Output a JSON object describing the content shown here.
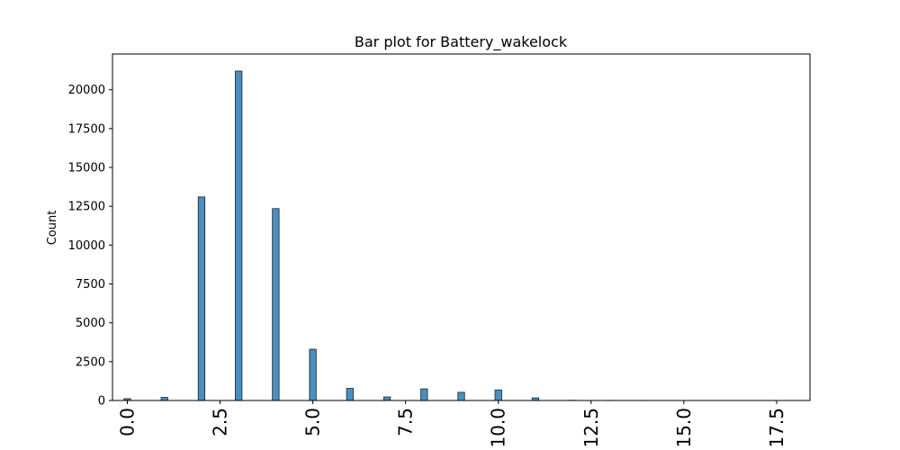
{
  "chart_data": {
    "type": "bar",
    "title": "Bar plot for Battery_wakelock",
    "xlabel": "",
    "ylabel": "Count",
    "xlim": [
      -0.4,
      18.4
    ],
    "ylim": [
      0,
      22300
    ],
    "x_ticks": [
      0.0,
      2.5,
      5.0,
      7.5,
      10.0,
      12.5,
      15.0,
      17.5
    ],
    "x_tick_labels": [
      "0.0",
      "2.5",
      "5.0",
      "7.5",
      "10.0",
      "12.5",
      "15.0",
      "17.5"
    ],
    "y_ticks": [
      0,
      2500,
      5000,
      7500,
      10000,
      12500,
      15000,
      17500,
      20000
    ],
    "y_tick_labels": [
      "0",
      "2500",
      "5000",
      "7500",
      "10000",
      "12500",
      "15000",
      "17500",
      "20000"
    ],
    "bar_color": "#4a8fc0",
    "bar_edge_color": "#1f1f1f",
    "bar_width": 0.18,
    "grid": false,
    "x": [
      0,
      1,
      2,
      3,
      4,
      5,
      6,
      7,
      8,
      9,
      10,
      11,
      12,
      13,
      14,
      15,
      16,
      17,
      18
    ],
    "values": [
      120,
      200,
      13100,
      21200,
      12350,
      3300,
      780,
      230,
      750,
      530,
      680,
      170,
      15,
      10,
      8,
      6,
      5,
      4,
      4
    ]
  }
}
